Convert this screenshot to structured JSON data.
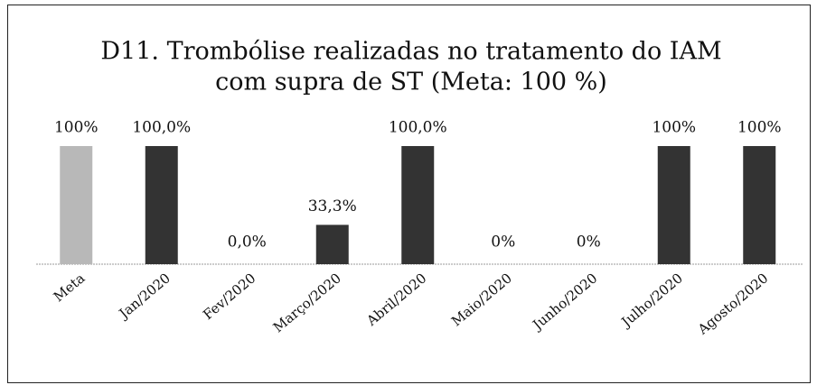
{
  "chart_data": {
    "type": "bar",
    "title": [
      "D11. Trombólise realizadas no tratamento do IAM",
      "com supra de ST    (Meta:  100 %)"
    ],
    "categories": [
      "Meta",
      "Jan/2020",
      "Fev/2020",
      "Março/2020",
      "Abril/2020",
      "Maio/2020",
      "Junho/2020",
      "Julho/2020",
      "Agosto/2020"
    ],
    "values": [
      100,
      100,
      0,
      33.3,
      100,
      0,
      0,
      100,
      100
    ],
    "value_labels": [
      "100%",
      "100,0%",
      "0,0%",
      "33,3%",
      "100,0%",
      "0%",
      "0%",
      "100%",
      "100%"
    ],
    "colors": [
      "#b8b8b8",
      "#333333",
      "#333333",
      "#333333",
      "#333333",
      "#333333",
      "#333333",
      "#333333",
      "#333333"
    ],
    "ylim": [
      0,
      100
    ]
  }
}
